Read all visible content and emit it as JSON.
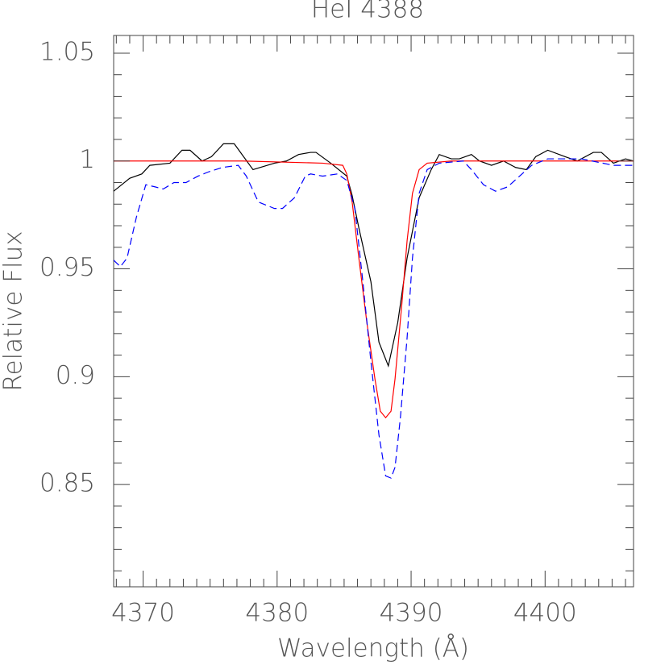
{
  "chart_data": {
    "type": "line",
    "title": "HeI 4388",
    "xlabel": "Wavelength (Å)",
    "ylabel": "Relative Flux",
    "xlim": [
      4367.8,
      4406.6
    ],
    "ylim": [
      0.8026,
      1.0582
    ],
    "xticks": [
      4370,
      4380,
      4390,
      4400
    ],
    "yticks": [
      0.85,
      0.9,
      0.95,
      1,
      1.05
    ],
    "xminorticks": [
      4368,
      4369,
      4371,
      4372,
      4373,
      4374,
      4375,
      4376,
      4377,
      4378,
      4379,
      4381,
      4382,
      4383,
      4384,
      4385,
      4386,
      4387,
      4388,
      4389,
      4391,
      4392,
      4393,
      4394,
      4395,
      4396,
      4397,
      4398,
      4399,
      4401,
      4402,
      4403,
      4404,
      4405,
      4406
    ],
    "yminorticks": [
      0.81,
      0.82,
      0.83,
      0.84,
      0.86,
      0.87,
      0.88,
      0.89,
      0.91,
      0.92,
      0.93,
      0.94,
      0.96,
      0.97,
      0.98,
      0.99,
      1.01,
      1.02,
      1.03,
      1.04
    ],
    "series": [
      {
        "color": "#000000",
        "linestyle": "solid",
        "x": [
          4367.8,
          4369.0,
          4369.9,
          4370.5,
          4372.0,
          4372.9,
          4373.5,
          4374.4,
          4375.1,
          4376.0,
          4376.8,
          4378.2,
          4379.8,
          4380.7,
          4381.6,
          4382.5,
          4382.9,
          4384.0,
          4385.2,
          4385.6,
          4386.1,
          4387.0,
          4387.6,
          4388.3,
          4389.0,
          4389.7,
          4390.6,
          4391.5,
          4392.1,
          4393.0,
          4393.6,
          4394.5,
          4395.1,
          4396.0,
          4396.9,
          4397.8,
          4398.6,
          4399.3,
          4400.2,
          4401.5,
          4402.4,
          4403.6,
          4404.2,
          4405.1,
          4406.0,
          4406.6
        ],
        "values": [
          0.986,
          0.992,
          0.994,
          0.998,
          0.999,
          1.005,
          1.005,
          1.0,
          1.002,
          1.008,
          1.008,
          0.996,
          0.999,
          1.0,
          1.003,
          1.004,
          1.004,
          0.999,
          0.993,
          0.984,
          0.969,
          0.944,
          0.916,
          0.905,
          0.925,
          0.955,
          0.983,
          0.996,
          1.003,
          1.001,
          1.001,
          1.003,
          1.0,
          0.998,
          1.0,
          0.997,
          0.996,
          1.002,
          1.005,
          1.002,
          1.0,
          1.004,
          1.004,
          0.999,
          1.001,
          1.0
        ]
      },
      {
        "color": "#ff0000",
        "linestyle": "solid",
        "x": [
          4367.8,
          4377.4,
          4383.4,
          4384.9,
          4385.2,
          4385.6,
          4386.1,
          4386.7,
          4387.3,
          4387.7,
          4388.1,
          4388.5,
          4388.8,
          4389.3,
          4389.7,
          4390.1,
          4390.6,
          4391.2,
          4393.0,
          4406.6
        ],
        "values": [
          1.0,
          1.0,
          0.999,
          0.998,
          0.994,
          0.981,
          0.955,
          0.925,
          0.899,
          0.884,
          0.881,
          0.884,
          0.899,
          0.933,
          0.963,
          0.985,
          0.996,
          0.999,
          1.0,
          1.0
        ]
      },
      {
        "color": "#0000ff",
        "linestyle": "dashed",
        "x": [
          4367.8,
          4368.3,
          4368.8,
          4369.5,
          4370.2,
          4370.9,
          4371.5,
          4372.3,
          4373.2,
          4374.1,
          4374.9,
          4375.9,
          4377.1,
          4377.7,
          4378.6,
          4379.8,
          4380.4,
          4381.3,
          4382.1,
          4382.5,
          4383.4,
          4384.5,
          4385.2,
          4385.8,
          4386.4,
          4387.0,
          4387.6,
          4388.1,
          4388.5,
          4388.8,
          4389.2,
          4389.7,
          4390.1,
          4390.6,
          4391.2,
          4392.1,
          4393.9,
          4394.5,
          4395.4,
          4396.3,
          4397.2,
          4398.1,
          4399.0,
          4400.2,
          4402.7,
          4405.1,
          4406.6
        ],
        "values": [
          0.954,
          0.951,
          0.955,
          0.974,
          0.989,
          0.988,
          0.987,
          0.99,
          0.99,
          0.993,
          0.995,
          0.997,
          0.998,
          0.993,
          0.981,
          0.978,
          0.978,
          0.983,
          0.993,
          0.994,
          0.993,
          0.994,
          0.991,
          0.978,
          0.944,
          0.907,
          0.873,
          0.854,
          0.853,
          0.858,
          0.881,
          0.918,
          0.955,
          0.985,
          0.996,
          0.999,
          1.0,
          0.996,
          0.989,
          0.986,
          0.988,
          0.993,
          0.998,
          1.001,
          1.001,
          0.998,
          0.998
        ]
      }
    ]
  }
}
